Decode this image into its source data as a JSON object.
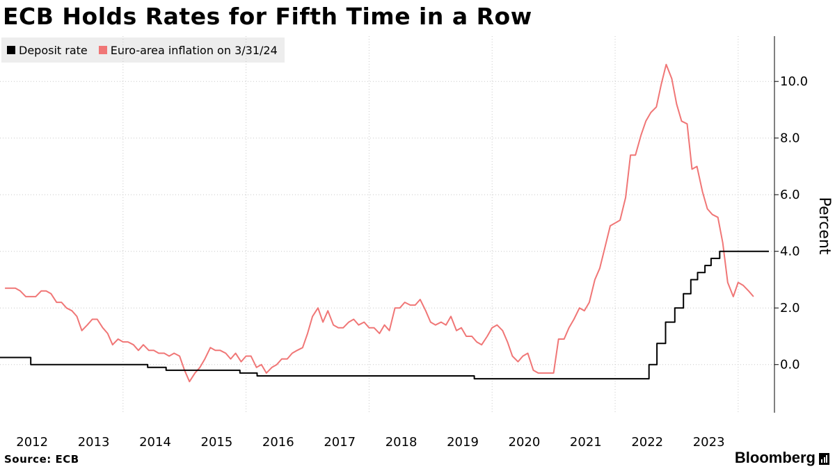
{
  "chart_data": {
    "type": "line",
    "title": "ECB Holds Rates for Fifth Time in a Row",
    "ylabel": "Percent",
    "xlabel": "",
    "ylim": [
      -1.7,
      11.6
    ],
    "yticks": [
      0,
      2,
      4,
      6,
      8,
      10
    ],
    "ytick_labels": [
      "0.0",
      "2.0",
      "4.0",
      "6.0",
      "8.0",
      "10.0"
    ],
    "xlim": [
      2011.5,
      2024.09
    ],
    "xticks": [
      2012,
      2013,
      2014,
      2015,
      2016,
      2017,
      2018,
      2019,
      2020,
      2021,
      2022,
      2023
    ],
    "xtick_labels": [
      "2012",
      "2013",
      "2014",
      "2015",
      "2016",
      "2017",
      "2018",
      "2019",
      "2020",
      "2021",
      "2022",
      "2023"
    ],
    "x_gridlines": [
      2013.5,
      2015.5,
      2017.5,
      2019.5,
      2021.5,
      2023.5
    ],
    "legend_position": "top-left",
    "series": [
      {
        "name": "Deposit rate",
        "color": "#000000",
        "step": true,
        "points": [
          [
            2011.5,
            0.25
          ],
          [
            2012.0,
            0.25
          ],
          [
            2012.0,
            0.0
          ],
          [
            2013.9,
            0.0
          ],
          [
            2013.9,
            -0.1
          ],
          [
            2014.2,
            -0.1
          ],
          [
            2014.2,
            -0.2
          ],
          [
            2015.4,
            -0.2
          ],
          [
            2015.4,
            -0.3
          ],
          [
            2015.68,
            -0.3
          ],
          [
            2015.68,
            -0.4
          ],
          [
            2019.21,
            -0.4
          ],
          [
            2019.21,
            -0.5
          ],
          [
            2022.05,
            -0.5
          ],
          [
            2022.05,
            0.0
          ],
          [
            2022.18,
            0.0
          ],
          [
            2022.18,
            0.75
          ],
          [
            2022.32,
            0.75
          ],
          [
            2022.32,
            1.5
          ],
          [
            2022.47,
            1.5
          ],
          [
            2022.47,
            2.0
          ],
          [
            2022.61,
            2.0
          ],
          [
            2022.61,
            2.5
          ],
          [
            2022.73,
            2.5
          ],
          [
            2022.73,
            3.0
          ],
          [
            2022.84,
            3.0
          ],
          [
            2022.84,
            3.25
          ],
          [
            2022.96,
            3.25
          ],
          [
            2022.96,
            3.5
          ],
          [
            2023.06,
            3.5
          ],
          [
            2023.06,
            3.75
          ],
          [
            2023.2,
            3.75
          ],
          [
            2023.2,
            4.0
          ],
          [
            2024.0,
            4.0
          ]
        ]
      },
      {
        "name": "Euro-area inflation on 3/31/24",
        "color": "#f07676",
        "step": false,
        "points": [
          [
            2011.58,
            2.7
          ],
          [
            2011.75,
            2.7
          ],
          [
            2011.83,
            2.6
          ],
          [
            2011.92,
            2.4
          ],
          [
            2012.08,
            2.4
          ],
          [
            2012.17,
            2.6
          ],
          [
            2012.25,
            2.6
          ],
          [
            2012.33,
            2.5
          ],
          [
            2012.42,
            2.2
          ],
          [
            2012.5,
            2.2
          ],
          [
            2012.58,
            2.0
          ],
          [
            2012.67,
            1.9
          ],
          [
            2012.75,
            1.7
          ],
          [
            2012.83,
            1.2
          ],
          [
            2012.92,
            1.4
          ],
          [
            2013.0,
            1.6
          ],
          [
            2013.08,
            1.6
          ],
          [
            2013.17,
            1.3
          ],
          [
            2013.25,
            1.1
          ],
          [
            2013.33,
            0.7
          ],
          [
            2013.42,
            0.9
          ],
          [
            2013.5,
            0.8
          ],
          [
            2013.58,
            0.8
          ],
          [
            2013.67,
            0.7
          ],
          [
            2013.75,
            0.5
          ],
          [
            2013.83,
            0.7
          ],
          [
            2013.92,
            0.5
          ],
          [
            2014.0,
            0.5
          ],
          [
            2014.08,
            0.4
          ],
          [
            2014.17,
            0.4
          ],
          [
            2014.25,
            0.3
          ],
          [
            2014.33,
            0.4
          ],
          [
            2014.42,
            0.3
          ],
          [
            2014.5,
            -0.2
          ],
          [
            2014.58,
            -0.6
          ],
          [
            2014.67,
            -0.3
          ],
          [
            2014.75,
            -0.1
          ],
          [
            2014.83,
            0.2
          ],
          [
            2014.92,
            0.6
          ],
          [
            2015.0,
            0.5
          ],
          [
            2015.08,
            0.5
          ],
          [
            2015.17,
            0.4
          ],
          [
            2015.25,
            0.2
          ],
          [
            2015.33,
            0.4
          ],
          [
            2015.42,
            0.1
          ],
          [
            2015.5,
            0.3
          ],
          [
            2015.58,
            0.3
          ],
          [
            2015.67,
            -0.1
          ],
          [
            2015.75,
            0.0
          ],
          [
            2015.83,
            -0.3
          ],
          [
            2015.92,
            -0.1
          ],
          [
            2016.0,
            0.0
          ],
          [
            2016.08,
            0.2
          ],
          [
            2016.17,
            0.2
          ],
          [
            2016.25,
            0.4
          ],
          [
            2016.33,
            0.5
          ],
          [
            2016.42,
            0.6
          ],
          [
            2016.5,
            1.1
          ],
          [
            2016.58,
            1.7
          ],
          [
            2016.67,
            2.0
          ],
          [
            2016.75,
            1.5
          ],
          [
            2016.83,
            1.9
          ],
          [
            2016.92,
            1.4
          ],
          [
            2017.0,
            1.3
          ],
          [
            2017.08,
            1.3
          ],
          [
            2017.17,
            1.5
          ],
          [
            2017.25,
            1.6
          ],
          [
            2017.33,
            1.4
          ],
          [
            2017.42,
            1.5
          ],
          [
            2017.5,
            1.3
          ],
          [
            2017.58,
            1.3
          ],
          [
            2017.67,
            1.1
          ],
          [
            2017.75,
            1.4
          ],
          [
            2017.83,
            1.2
          ],
          [
            2017.92,
            2.0
          ],
          [
            2018.0,
            2.0
          ],
          [
            2018.08,
            2.2
          ],
          [
            2018.17,
            2.1
          ],
          [
            2018.25,
            2.1
          ],
          [
            2018.33,
            2.3
          ],
          [
            2018.42,
            1.9
          ],
          [
            2018.5,
            1.5
          ],
          [
            2018.58,
            1.4
          ],
          [
            2018.67,
            1.5
          ],
          [
            2018.75,
            1.4
          ],
          [
            2018.83,
            1.7
          ],
          [
            2018.92,
            1.2
          ],
          [
            2019.0,
            1.3
          ],
          [
            2019.08,
            1.0
          ],
          [
            2019.17,
            1.0
          ],
          [
            2019.25,
            0.8
          ],
          [
            2019.33,
            0.7
          ],
          [
            2019.42,
            1.0
          ],
          [
            2019.5,
            1.3
          ],
          [
            2019.58,
            1.4
          ],
          [
            2019.67,
            1.2
          ],
          [
            2019.75,
            0.8
          ],
          [
            2019.83,
            0.3
          ],
          [
            2019.92,
            0.1
          ],
          [
            2020.0,
            0.3
          ],
          [
            2020.08,
            0.4
          ],
          [
            2020.17,
            -0.2
          ],
          [
            2020.25,
            -0.3
          ],
          [
            2020.33,
            -0.3
          ],
          [
            2020.42,
            -0.3
          ],
          [
            2020.5,
            -0.3
          ],
          [
            2020.58,
            0.9
          ],
          [
            2020.67,
            0.9
          ],
          [
            2020.75,
            1.3
          ],
          [
            2020.83,
            1.6
          ],
          [
            2020.92,
            2.0
          ],
          [
            2021.0,
            1.9
          ],
          [
            2021.08,
            2.2
          ],
          [
            2021.17,
            3.0
          ],
          [
            2021.25,
            3.4
          ],
          [
            2021.33,
            4.1
          ],
          [
            2021.42,
            4.9
          ],
          [
            2021.5,
            5.0
          ],
          [
            2021.58,
            5.1
          ],
          [
            2021.67,
            5.9
          ],
          [
            2021.75,
            7.4
          ],
          [
            2021.83,
            7.4
          ],
          [
            2021.92,
            8.1
          ],
          [
            2022.0,
            8.6
          ],
          [
            2022.08,
            8.9
          ],
          [
            2022.17,
            9.1
          ],
          [
            2022.25,
            9.9
          ],
          [
            2022.33,
            10.6
          ],
          [
            2022.42,
            10.1
          ],
          [
            2022.5,
            9.2
          ],
          [
            2022.58,
            8.6
          ],
          [
            2022.67,
            8.5
          ],
          [
            2022.75,
            6.9
          ],
          [
            2022.83,
            7.0
          ],
          [
            2022.92,
            6.1
          ],
          [
            2023.0,
            5.5
          ],
          [
            2023.08,
            5.3
          ],
          [
            2023.17,
            5.2
          ],
          [
            2023.25,
            4.3
          ],
          [
            2023.33,
            2.9
          ],
          [
            2023.42,
            2.4
          ],
          [
            2023.5,
            2.9
          ],
          [
            2023.58,
            2.8
          ],
          [
            2023.67,
            2.6
          ],
          [
            2023.75,
            2.4
          ]
        ]
      }
    ],
    "source": "Source: ECB",
    "brand": "Bloomberg"
  }
}
